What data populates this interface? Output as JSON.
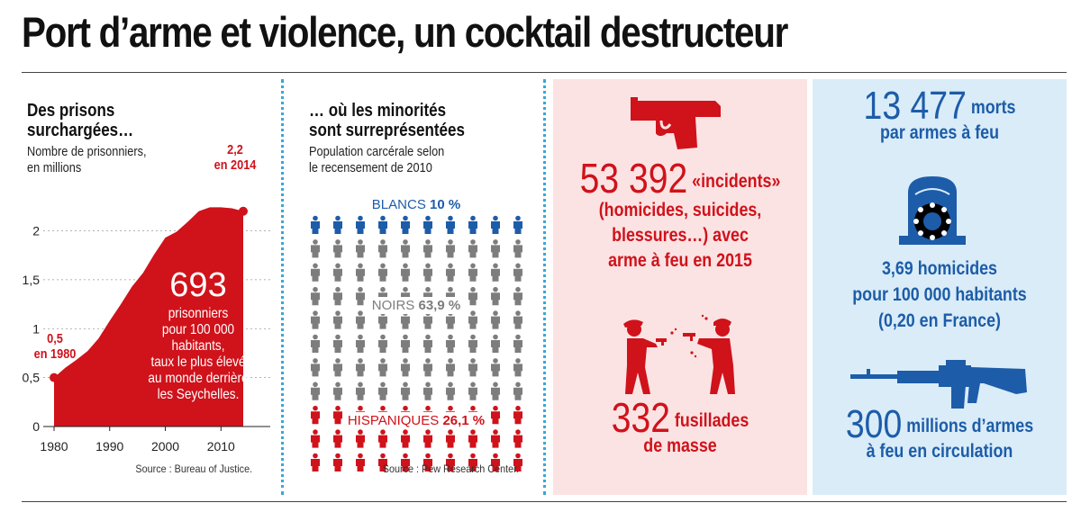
{
  "title": "Port d’arme et violence, un cocktail destructeur",
  "colors": {
    "red": "#d0121b",
    "blue": "#1d5ca8",
    "grey": "#7d7d7d",
    "dotted": "#36a9d6"
  },
  "panel1": {
    "heading": [
      "Des prisons",
      "surchargées…"
    ],
    "subtitle": [
      "Nombre de prisonniers,",
      "en millions"
    ],
    "label_start": [
      "0,5",
      "en 1980"
    ],
    "label_end": [
      "2,2",
      "en 2014"
    ],
    "big_number": "693",
    "note": [
      "prisonniers",
      "pour 100 000",
      "habitants,",
      "taux le plus élevé",
      "au monde derrière",
      "les Seychelles."
    ],
    "source": "Source : Bureau of Justice."
  },
  "chart_data": {
    "type": "area",
    "x": [
      1980,
      1982,
      1984,
      1986,
      1988,
      1990,
      1992,
      1994,
      1996,
      1998,
      2000,
      2002,
      2004,
      2006,
      2008,
      2010,
      2012,
      2014
    ],
    "y": [
      0.5,
      0.6,
      0.68,
      0.77,
      0.9,
      1.08,
      1.25,
      1.43,
      1.57,
      1.76,
      1.93,
      1.99,
      2.09,
      2.2,
      2.24,
      2.24,
      2.23,
      2.2
    ],
    "xticks": [
      "1980",
      "1990",
      "2000",
      "2010"
    ],
    "xtick_values": [
      1980,
      1990,
      2000,
      2010
    ],
    "yticks": [
      "0",
      "0,5",
      "1",
      "1,5",
      "2"
    ],
    "ytick_values": [
      0,
      0.5,
      1,
      1.5,
      2
    ],
    "xlim": [
      1980,
      2014
    ],
    "ylim": [
      0,
      2.4
    ],
    "title": "",
    "xlabel": "",
    "ylabel": "",
    "color": "#d0121b"
  },
  "panel2": {
    "heading": [
      "… où les minorités",
      "sont surreprésentées"
    ],
    "subtitle": [
      "Population carcérale selon",
      "le recensement de 2010"
    ],
    "groups": [
      {
        "name": "BLANCS",
        "value": "10 %",
        "color": "#1d5ca8",
        "rows": 1
      },
      {
        "name": "NOIRS",
        "value": "63,9 %",
        "color": "#7d7d7d",
        "rows": 7
      },
      {
        "name": "HISPANIQUES",
        "value": "26,1 %",
        "color": "#d0121b",
        "rows": 3
      }
    ],
    "source": "Source : Pew Research Center."
  },
  "panel3": {
    "icon1": "handgun-icon",
    "big_number": "53 392",
    "line1": "«incidents»",
    "lines": [
      "(homicides, suicides,",
      "blessures…) avec",
      "arme à feu en 2015"
    ],
    "icon2": "shooters-icon",
    "big_number2": "332",
    "line2": [
      "fusillades",
      "de masse"
    ]
  },
  "panel4": {
    "big_number": "13 477",
    "label1": [
      "morts",
      "par armes à feu"
    ],
    "icon1": "tombstone-wreath-icon",
    "homicides": [
      "3,69 homicides",
      "pour 100 000 habitants",
      "(0,20 en France)"
    ],
    "icon2": "assault-rifle-icon",
    "big_number2": "300",
    "label2": [
      "millions d’armes",
      "à feu en circulation"
    ]
  }
}
